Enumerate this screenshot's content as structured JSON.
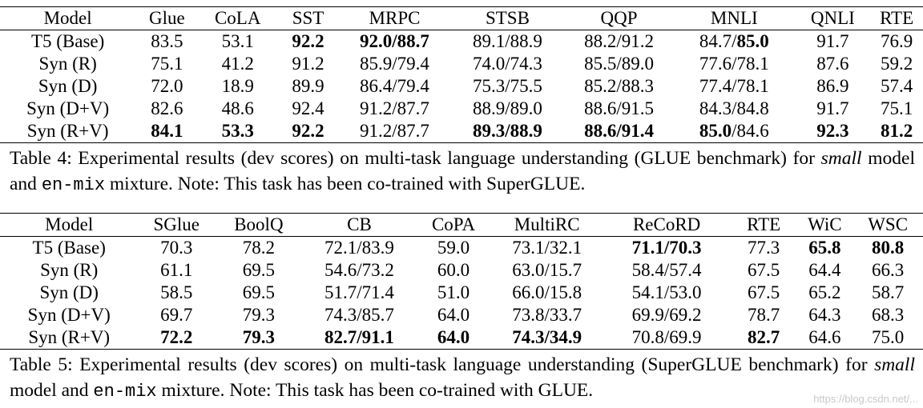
{
  "table4": {
    "headers": [
      "Model",
      "Glue",
      "CoLA",
      "SST",
      "MRPC",
      "STSB",
      "QQP",
      "MNLI",
      "QNLI",
      "RTE"
    ],
    "rows": [
      [
        "T5 (Base)",
        "83.5",
        "53.1",
        "92.2",
        "92.0/88.7",
        "89.1/88.9",
        "88.2/91.2",
        [
          "84.7/",
          "85.0"
        ],
        "91.7",
        "76.9"
      ],
      [
        "Syn (R)",
        "75.1",
        "41.2",
        "91.2",
        "85.9/79.4",
        "74.0/74.3",
        "85.5/89.0",
        "77.6/78.1",
        "87.6",
        "59.2"
      ],
      [
        "Syn (D)",
        "72.0",
        "18.9",
        "89.9",
        "86.4/79.4",
        "75.3/75.5",
        "85.2/88.3",
        "77.4/78.1",
        "86.9",
        "57.4"
      ],
      [
        "Syn (D+V)",
        "82.6",
        "48.6",
        "92.4",
        "91.2/87.7",
        "88.9/89.0",
        "88.6/91.5",
        "84.3/84.8",
        "91.7",
        "75.1"
      ],
      [
        "Syn (R+V)",
        "84.1",
        "53.3",
        "92.2",
        "91.2/87.7",
        "89.3/88.9",
        "88.6/91.4",
        [
          "85.0",
          "/84.6"
        ],
        "92.3",
        "81.2"
      ]
    ],
    "bold": [
      [
        false,
        false,
        false,
        true,
        true,
        false,
        false,
        false,
        false,
        false
      ],
      [
        false,
        false,
        false,
        false,
        false,
        false,
        false,
        false,
        false,
        false
      ],
      [
        false,
        false,
        false,
        false,
        false,
        false,
        false,
        false,
        false,
        false
      ],
      [
        false,
        false,
        false,
        false,
        false,
        false,
        false,
        false,
        false,
        false
      ],
      [
        false,
        true,
        true,
        true,
        false,
        true,
        true,
        false,
        true,
        true
      ]
    ],
    "caption": {
      "prefix": "Table 4: Experimental results (dev scores) on multi-task language understanding (GLUE benchmark) for ",
      "italic": "small",
      "middle": " model and ",
      "mono": "en-mix",
      "suffix": " mixture. Note: This task has been co-trained with SuperGLUE."
    }
  },
  "table5": {
    "headers": [
      "Model",
      "SGlue",
      "BoolQ",
      "CB",
      "CoPA",
      "MultiRC",
      "ReCoRD",
      "RTE",
      "WiC",
      "WSC"
    ],
    "rows": [
      [
        "T5 (Base)",
        "70.3",
        "78.2",
        "72.1/83.9",
        "59.0",
        "73.1/32.1",
        "71.1/70.3",
        "77.3",
        "65.8",
        "80.8"
      ],
      [
        "Syn (R)",
        "61.1",
        "69.5",
        "54.6/73.2",
        "60.0",
        "63.0/15.7",
        "58.4/57.4",
        "67.5",
        "64.4",
        "66.3"
      ],
      [
        "Syn (D)",
        "58.5",
        "69.5",
        "51.7/71.4",
        "51.0",
        "66.0/15.8",
        "54.1/53.0",
        "67.5",
        "65.2",
        "58.7"
      ],
      [
        "Syn (D+V)",
        "69.7",
        "79.3",
        "74.3/85.7",
        "64.0",
        "73.8/33.7",
        "69.9/69.2",
        "78.7",
        "64.3",
        "68.3"
      ],
      [
        "Syn (R+V)",
        "72.2",
        "79.3",
        "82.7/91.1",
        "64.0",
        "74.3/34.9",
        "70.8/69.9",
        "82.7",
        "64.6",
        "75.0"
      ]
    ],
    "bold": [
      [
        false,
        false,
        false,
        false,
        false,
        false,
        true,
        false,
        true,
        true
      ],
      [
        false,
        false,
        false,
        false,
        false,
        false,
        false,
        false,
        false,
        false
      ],
      [
        false,
        false,
        false,
        false,
        false,
        false,
        false,
        false,
        false,
        false
      ],
      [
        false,
        false,
        false,
        false,
        false,
        false,
        false,
        false,
        false,
        false
      ],
      [
        false,
        true,
        true,
        true,
        true,
        true,
        false,
        true,
        false,
        false
      ]
    ],
    "caption": {
      "prefix": "Table 5: Experimental results (dev scores) on multi-task language understanding (SuperGLUE benchmark) for ",
      "italic": "small",
      "middle": " model and ",
      "mono": "en-mix",
      "suffix": " mixture. Note: This task has been co-trained with GLUE."
    }
  }
}
